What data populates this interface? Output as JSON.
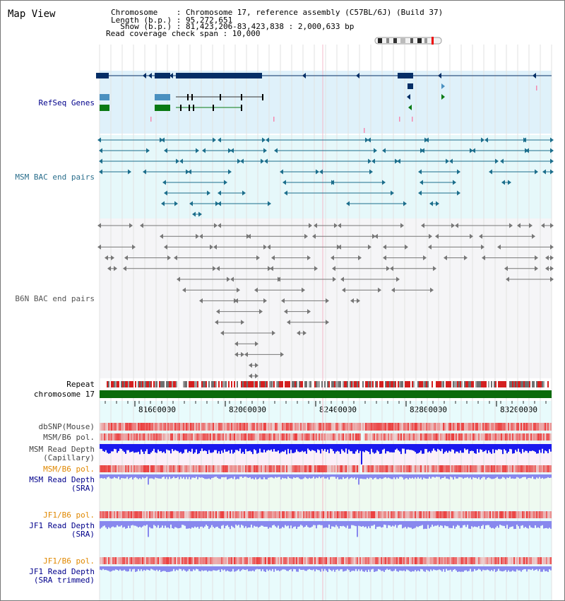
{
  "title": "Map View",
  "info": {
    "l1": "Chromosome    : Chromosome 17, reference assembly (C57BL/6J) (Build 37)",
    "l2": "Length (b.p.) : 95,272,651",
    "l3": "  Show (b.p.) : 81,423,206-83,423,838 : 2,000,633 bp",
    "l4": "Read coverage check span : 10,000"
  },
  "tracks": {
    "refseq": "RefSeq Genes",
    "msm_bac": "MSM BAC end pairs",
    "b6n_bac": "B6N BAC end pairs",
    "repeat": "Repeat",
    "chromosome": "chromosome 17",
    "dbsnp": "dbSNP(Mouse)",
    "msm_pol1": "MSM/B6 pol.",
    "msm_depth_cap": "MSM Read Depth\n(Capillary)",
    "msm_pol2": "MSM/B6 pol.",
    "msm_depth_sra": "MSM Read Depth\n(SRA)",
    "jf1_pol1": "JF1/B6 pol.",
    "jf1_depth": "JF1 Read Depth\n(SRA)",
    "jf1_pol2": "JF1/B6 pol.",
    "jf1_depth_trim": "JF1 Read Depth\n(SRA trimmed)"
  },
  "ruler": [
    "81600000",
    "82000000",
    "82400000",
    "82800000",
    "83200000"
  ],
  "colors": {
    "refseq_bg": "#dff1fa",
    "msm_bac_bg": "#e6f8fa",
    "b6n_bg": "#f5f5f7",
    "gene_navy": "#052e66",
    "gene_blue": "#4a90c0",
    "gene_green": "#0a7a14",
    "msm_pair": "#1c6e8c",
    "b6n_pair": "#777777",
    "chrom_green": "#0b6b0b",
    "depth_blue": "#1a1aee",
    "depth_light": "#8888ee",
    "label_navy": "#00008b",
    "label_orange": "#e08800"
  }
}
